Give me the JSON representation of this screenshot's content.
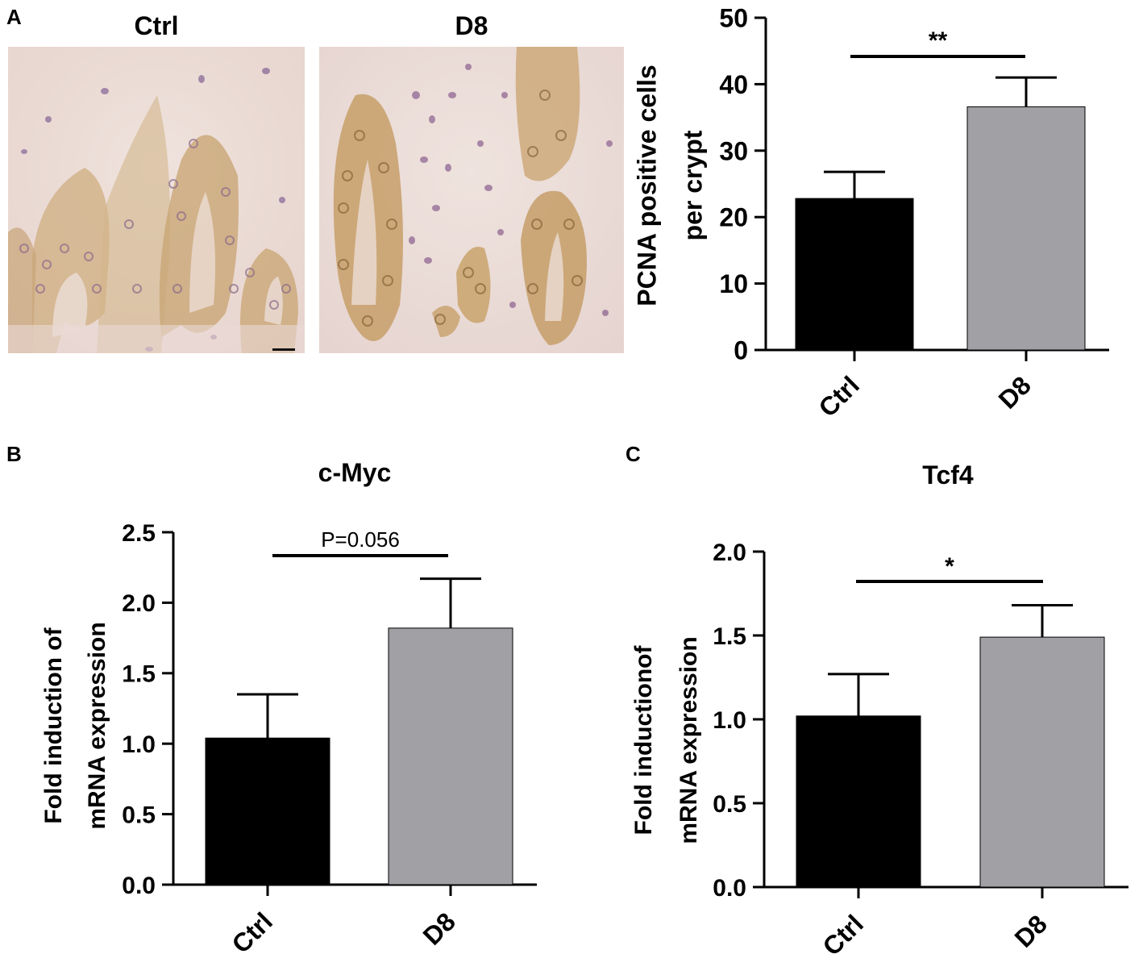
{
  "figure": {
    "panels": [
      {
        "letter": "A"
      },
      {
        "letter": "B"
      },
      {
        "letter": "C"
      }
    ],
    "micrographs": [
      {
        "label": "Ctrl"
      },
      {
        "label": "D8"
      }
    ],
    "colors": {
      "ctrl_bar": "#000000",
      "d8_bar": "#a1a0a5",
      "tissue_background": "#ecdcd8",
      "stained_epithelium": "#c9a679",
      "nuclei": "#8c6ba0"
    }
  },
  "chart_data": [
    {
      "type": "bar",
      "panel": "A",
      "title": "",
      "ylabel_lines": [
        "PCNA positive cells",
        "per crypt"
      ],
      "categories": [
        "Ctrl",
        "D8"
      ],
      "values": [
        22.8,
        36.6
      ],
      "error_upper": [
        26.8,
        41.0
      ],
      "ylim": [
        0,
        50
      ],
      "yticks": [
        "0",
        "10",
        "20",
        "30",
        "40",
        "50"
      ],
      "ytick_values": [
        0,
        10,
        20,
        30,
        40,
        50
      ],
      "significance": "**"
    },
    {
      "type": "bar",
      "panel": "B",
      "title": "c-Myc",
      "ylabel_lines": [
        "Fold induction of",
        "mRNA expression"
      ],
      "categories": [
        "Ctrl",
        "D8"
      ],
      "values": [
        1.04,
        1.82
      ],
      "error_upper": [
        1.35,
        2.17
      ],
      "ylim": [
        0,
        2.5
      ],
      "yticks": [
        "0.0",
        "0.5",
        "1.0",
        "1.5",
        "2.0",
        "2.5"
      ],
      "ytick_values": [
        0,
        0.5,
        1.0,
        1.5,
        2.0,
        2.5
      ],
      "significance": "P=0.056"
    },
    {
      "type": "bar",
      "panel": "C",
      "title": "Tcf4",
      "ylabel_lines": [
        "Fold inductionof",
        "mRNA expression"
      ],
      "categories": [
        "Ctrl",
        "D8"
      ],
      "values": [
        1.02,
        1.49
      ],
      "error_upper": [
        1.27,
        1.68
      ],
      "ylim": [
        0,
        2.0
      ],
      "yticks": [
        "0.0",
        "0.5",
        "1.0",
        "1.5",
        "2.0"
      ],
      "ytick_values": [
        0,
        0.5,
        1.0,
        1.5,
        2.0
      ],
      "significance": "*"
    }
  ]
}
